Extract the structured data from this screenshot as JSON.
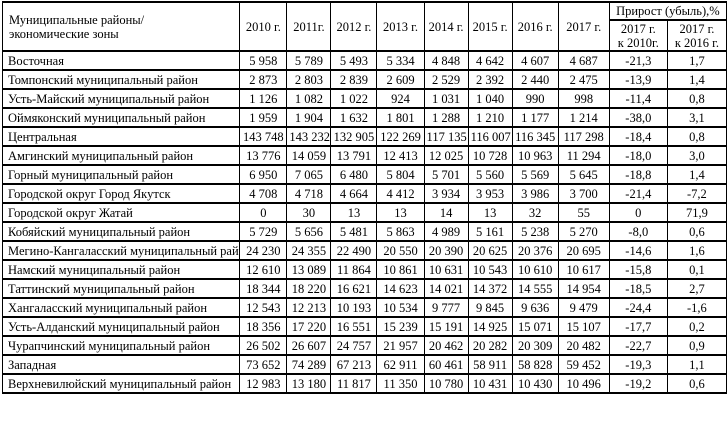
{
  "table": {
    "header": {
      "name_line1": "Муниципальные районы/",
      "name_line2": "экономические зоны",
      "years": [
        "2010 г.",
        "2011г.",
        "2012 г.",
        "2013 г.",
        "2014 г.",
        "2015 г.",
        "2016 г.",
        "2017 г."
      ],
      "growth": "Прирост (убыль),%",
      "sub1_line1": "2017 г.",
      "sub1_line2": "к 2010г.",
      "sub2_line1": "2017 г.",
      "sub2_line2": "к 2016 г."
    },
    "rows": [
      {
        "name": "Восточная",
        "values": [
          "5 958",
          "5 789",
          "5 493",
          "5 334",
          "4 848",
          "4 642",
          "4 607",
          "4 687"
        ],
        "growth_2010": "-21,3",
        "growth_2016": "1,7"
      },
      {
        "name": "Томпонский муниципальный район",
        "values": [
          "2 873",
          "2 803",
          "2 839",
          "2 609",
          "2 529",
          "2 392",
          "2 440",
          "2 475"
        ],
        "growth_2010": "-13,9",
        "growth_2016": "1,4"
      },
      {
        "name": "Усть-Майский муниципальный район",
        "values": [
          "1 126",
          "1 082",
          "1 022",
          "924",
          "1 031",
          "1 040",
          "990",
          "998"
        ],
        "growth_2010": "-11,4",
        "growth_2016": "0,8"
      },
      {
        "name": "Оймяконский муниципальный район",
        "values": [
          "1 959",
          "1 904",
          "1 632",
          "1 801",
          "1 288",
          "1 210",
          "1 177",
          "1 214"
        ],
        "growth_2010": "-38,0",
        "growth_2016": "3,1"
      },
      {
        "name": "Центральная",
        "values": [
          "143 748",
          "143 232",
          "132 905",
          "122 269",
          "117 135",
          "116 007",
          "116 345",
          "117 298"
        ],
        "growth_2010": "-18,4",
        "growth_2016": "0,8"
      },
      {
        "name": "Амгинский муниципальный район",
        "values": [
          "13 776",
          "14 059",
          "13 791",
          "12 413",
          "12 025",
          "10 728",
          "10 963",
          "11 294"
        ],
        "growth_2010": "-18,0",
        "growth_2016": "3,0"
      },
      {
        "name": "Горный муниципальный район",
        "values": [
          "6 950",
          "7 065",
          "6 480",
          "5 804",
          "5 701",
          "5 560",
          "5 569",
          "5 645"
        ],
        "growth_2010": "-18,8",
        "growth_2016": "1,4"
      },
      {
        "name": "Городской округ Город Якутск",
        "values": [
          "4 708",
          "4 718",
          "4 664",
          "4 412",
          "3 934",
          "3 953",
          "3 986",
          "3 700"
        ],
        "growth_2010": "-21,4",
        "growth_2016": "-7,2"
      },
      {
        "name": "Городской округ Жатай",
        "values": [
          "0",
          "30",
          "13",
          "13",
          "14",
          "13",
          "32",
          "55"
        ],
        "growth_2010": "0",
        "growth_2016": "71,9"
      },
      {
        "name": "Кобяйский муниципальный район",
        "values": [
          "5 729",
          "5 656",
          "5 481",
          "5 863",
          "4 989",
          "5 161",
          "5 238",
          "5 270"
        ],
        "growth_2010": "-8,0",
        "growth_2016": "0,6"
      },
      {
        "name": "Мегино-Кангаласский муниципальный район",
        "values": [
          "24 230",
          "24 355",
          "22 490",
          "20 550",
          "20 390",
          "20 625",
          "20 376",
          "20 695"
        ],
        "growth_2010": "-14,6",
        "growth_2016": "1,6"
      },
      {
        "name": "Намский муниципальный район",
        "values": [
          "12 610",
          "13 089",
          "11 864",
          "10 861",
          "10 631",
          "10 543",
          "10 610",
          "10 617"
        ],
        "growth_2010": "-15,8",
        "growth_2016": "0,1"
      },
      {
        "name": "Таттинский муниципальный район",
        "values": [
          "18 344",
          "18 220",
          "16 621",
          "14 623",
          "14 021",
          "14 372",
          "14 555",
          "14 954"
        ],
        "growth_2010": "-18,5",
        "growth_2016": "2,7"
      },
      {
        "name": "Хангаласский муниципальный район",
        "values": [
          "12 543",
          "12 213",
          "10 193",
          "10 534",
          "9 777",
          "9 845",
          "9 636",
          "9 479"
        ],
        "growth_2010": "-24,4",
        "growth_2016": "-1,6"
      },
      {
        "name": "Усть-Алданский муниципальный район",
        "values": [
          "18 356",
          "17 220",
          "16 551",
          "15 239",
          "15 191",
          "14 925",
          "15 071",
          "15 107"
        ],
        "growth_2010": "-17,7",
        "growth_2016": "0,2"
      },
      {
        "name": "Чурапчинский муниципальный район",
        "values": [
          "26 502",
          "26 607",
          "24 757",
          "21 957",
          "20 462",
          "20 282",
          "20 309",
          "20 482"
        ],
        "growth_2010": "-22,7",
        "growth_2016": "0,9"
      },
      {
        "name": "Западная",
        "values": [
          "73 652",
          "74 289",
          "67 213",
          "62 911",
          "60 461",
          "58 911",
          "58 828",
          "59 452"
        ],
        "growth_2010": "-19,3",
        "growth_2016": "1,1"
      },
      {
        "name": "Верхневилюйский муниципальный район",
        "values": [
          "12 983",
          "13 180",
          "11 817",
          "11 350",
          "10 780",
          "10 431",
          "10 430",
          "10 496"
        ],
        "growth_2010": "-19,2",
        "growth_2016": "0,6"
      }
    ]
  }
}
